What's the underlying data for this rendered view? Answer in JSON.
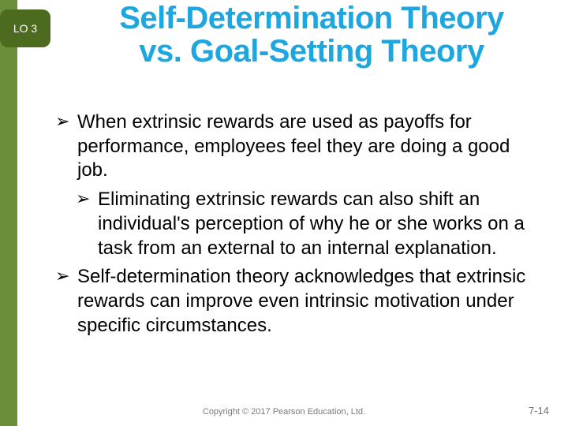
{
  "colors": {
    "stripe": "#6b8e3a",
    "badge_bg": "#4d6b1f",
    "title": "#1da6e0",
    "body_text": "#000000",
    "footer_text": "#7a7a7a"
  },
  "lo_badge": "LO 3",
  "title": {
    "line1": "Self-Determination Theory",
    "line2": "vs. Goal-Setting Theory",
    "fontsize": 40
  },
  "bullets": [
    {
      "level": 1,
      "text": "When extrinsic rewards are used as payoffs for performance, employees feel they are doing a good job."
    },
    {
      "level": 2,
      "text": "Eliminating extrinsic rewards can also shift an individual's perception of why he or she works on a task from an external to an internal explanation."
    },
    {
      "level": 1,
      "text": "Self-determination theory acknowledges that extrinsic rewards can improve even intrinsic motivation under specific circumstances."
    }
  ],
  "copyright": "Copyright © 2017 Pearson Education, Ltd.",
  "page_number": "7-14"
}
